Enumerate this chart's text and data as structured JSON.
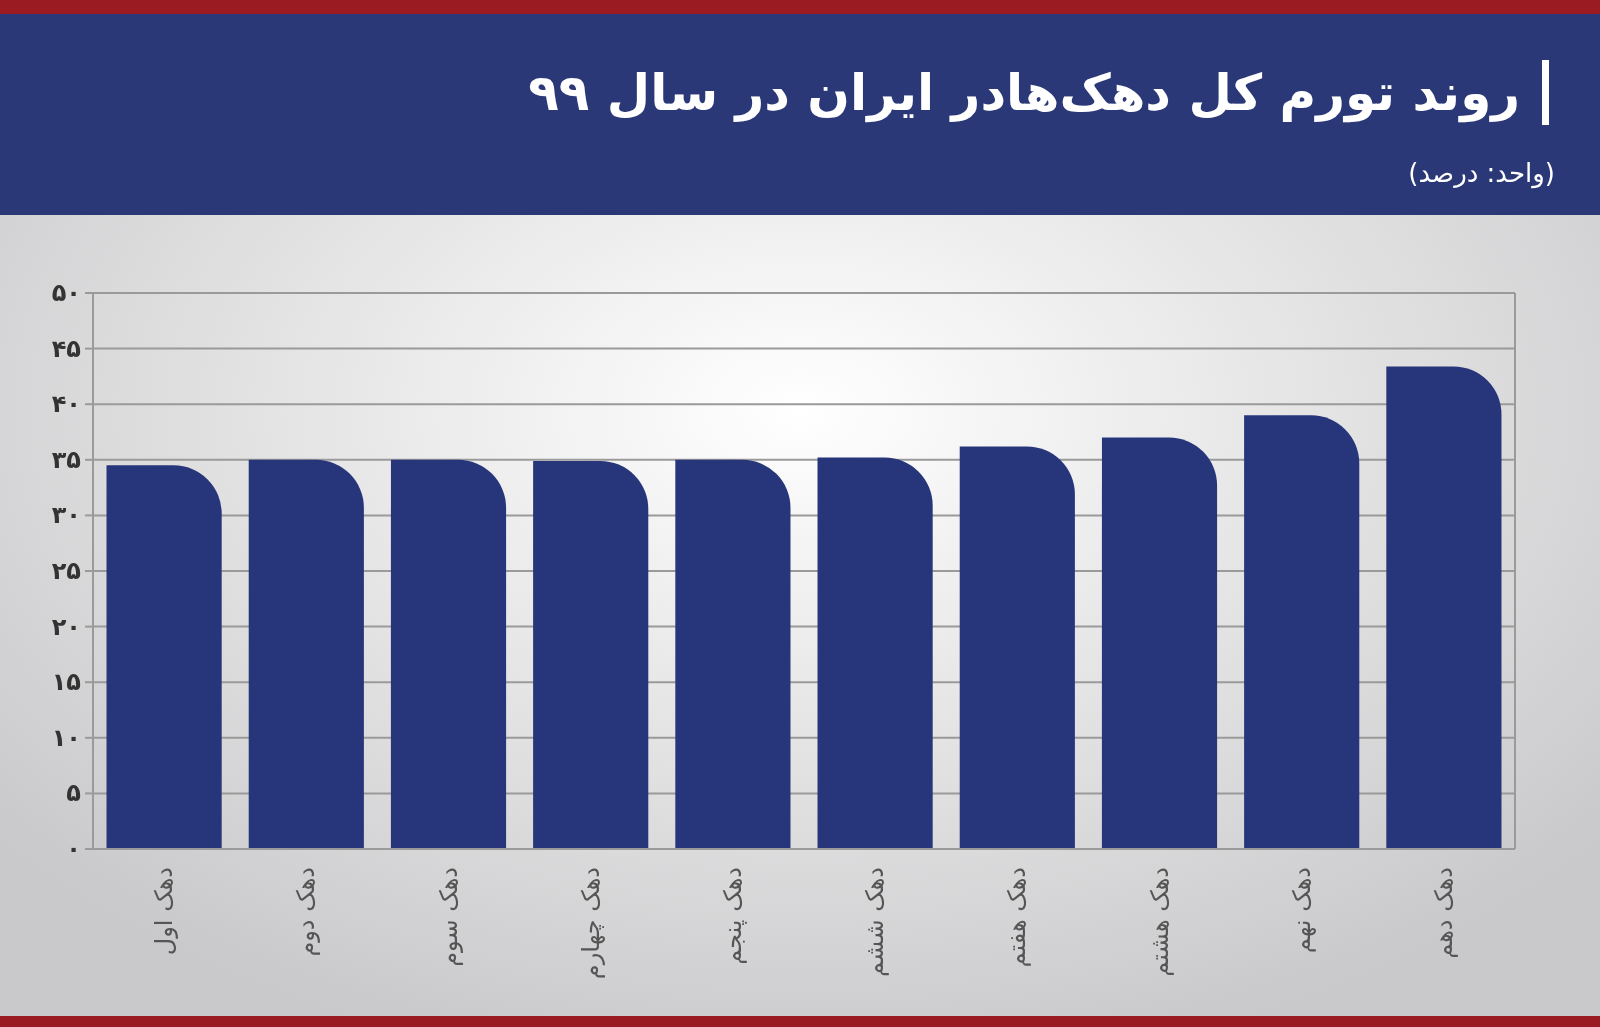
{
  "chart_data": {
    "type": "bar",
    "title": "روند تورم کل دهک‌هادر ایران در سال ۹۹",
    "subtitle": "(واحد: درصد)",
    "categories": [
      "دهک اول",
      "دهک دوم",
      "دهک سوم",
      "دهک چهارم",
      "دهک پنجم",
      "دهک ششم",
      "دهک هفتم",
      "دهک هشتم",
      "دهک نهم",
      "دهک دهم"
    ],
    "values": [
      34.5,
      35.0,
      35.0,
      34.9,
      35.0,
      35.2,
      36.2,
      37.0,
      39.0,
      43.4
    ],
    "color": "#27367a",
    "ylim": [
      0,
      50
    ],
    "yticks": [
      {
        "value": 0,
        "label": "۰"
      },
      {
        "value": 5,
        "label": "۵"
      },
      {
        "value": 10,
        "label": "۱۰"
      },
      {
        "value": 15,
        "label": "۱۵"
      },
      {
        "value": 20,
        "label": "۲۰"
      },
      {
        "value": 25,
        "label": "۲۵"
      },
      {
        "value": 30,
        "label": "۳۰"
      },
      {
        "value": 35,
        "label": "۳۵"
      },
      {
        "value": 40,
        "label": "۴۰"
      },
      {
        "value": 45,
        "label": "۴۵"
      },
      {
        "value": 50,
        "label": "۵۰"
      }
    ],
    "grid": "y"
  }
}
